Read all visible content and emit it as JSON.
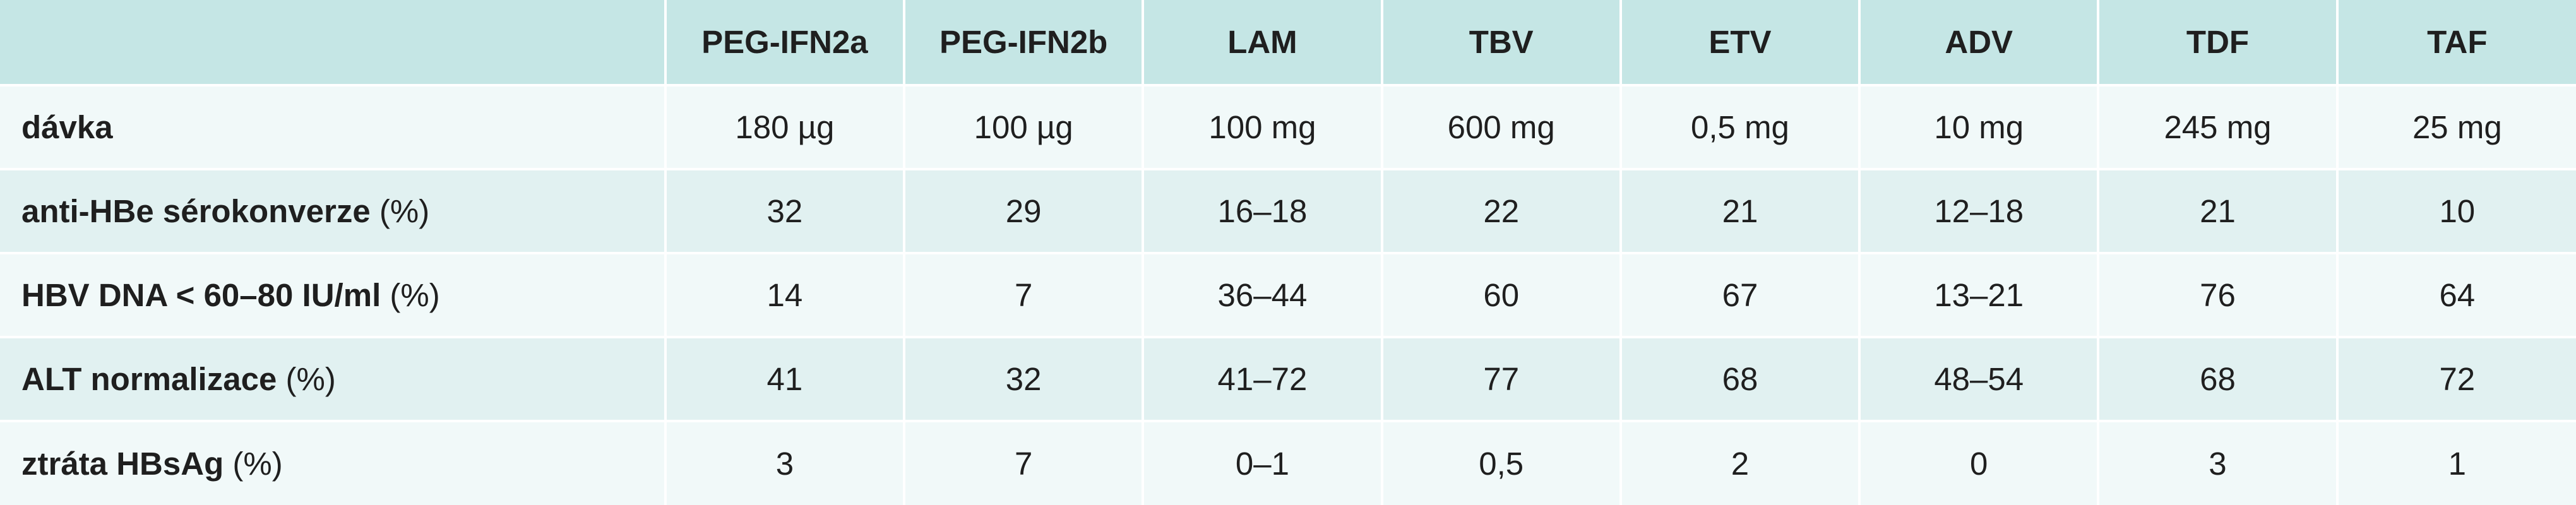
{
  "table": {
    "columns": [
      "PEG-IFN2a",
      "PEG-IFN2b",
      "LAM",
      "TBV",
      "ETV",
      "ADV",
      "TDF",
      "TAF"
    ],
    "rows": [
      {
        "label": "dávka",
        "unit": "",
        "values": [
          "180 µg",
          "100 µg",
          "100 mg",
          "600 mg",
          "0,5 mg",
          "10 mg",
          "245 mg",
          "25 mg"
        ]
      },
      {
        "label": "anti-HBe sérokonverze",
        "unit": " (%)",
        "values": [
          "32",
          "29",
          "16–18",
          "22",
          "21",
          "12–18",
          "21",
          "10"
        ]
      },
      {
        "label": "HBV DNA < 60–80 IU/ml",
        "unit": " (%)",
        "values": [
          "14",
          "7",
          "36–44",
          "60",
          "67",
          "13–21",
          "76",
          "64"
        ]
      },
      {
        "label": "ALT normalizace",
        "unit": " (%)",
        "values": [
          "41",
          "32",
          "41–72",
          "77",
          "68",
          "48–54",
          "68",
          "72"
        ]
      },
      {
        "label": "ztráta HBsAg",
        "unit": " (%)",
        "values": [
          "3",
          "7",
          "0–1",
          "0,5",
          "2",
          "0",
          "3",
          "1"
        ]
      }
    ]
  },
  "colors": {
    "header_bg": "#c5e6e5",
    "row_light": "#f1f9f9",
    "row_dark": "#e1f1f1"
  }
}
